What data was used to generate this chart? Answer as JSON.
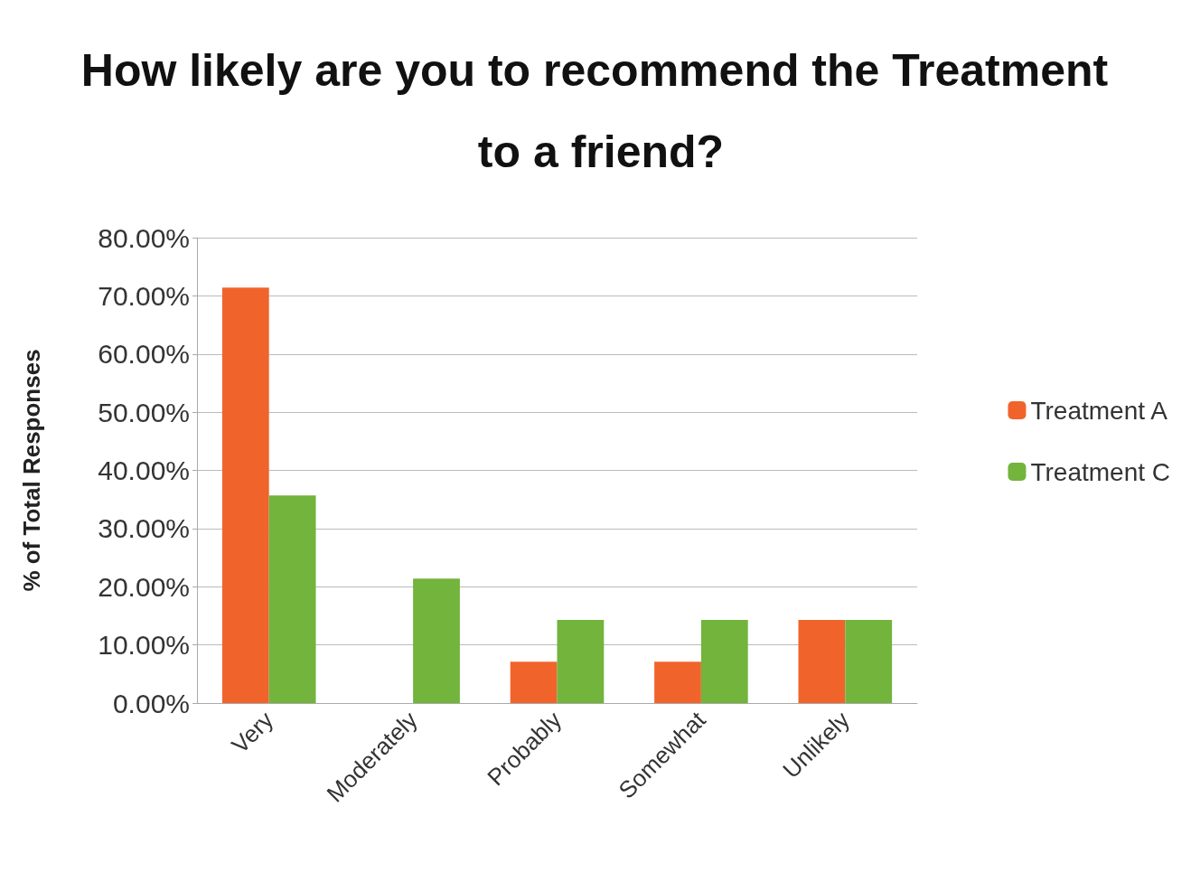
{
  "chart_data": {
    "type": "bar",
    "title": "How likely are you to recommend the Treatment to a friend?",
    "ylabel": "% of Total Responses",
    "categories": [
      "Very",
      "Moderately",
      "Probably",
      "Somewhat",
      "Unlikely"
    ],
    "series": [
      {
        "name": "Treatment A",
        "color": "#f0642c",
        "values": [
          71.4,
          0,
          7.1,
          7.1,
          14.3
        ]
      },
      {
        "name": "Treatment C",
        "color": "#72b43c",
        "values": [
          35.7,
          21.4,
          14.3,
          14.3,
          14.3
        ]
      }
    ],
    "ylim": [
      0,
      80
    ],
    "yticks": [
      {
        "value": 0,
        "label": "0.00%"
      },
      {
        "value": 10,
        "label": "10.00%"
      },
      {
        "value": 20,
        "label": "20.00%"
      },
      {
        "value": 30,
        "label": "30.00%"
      },
      {
        "value": 40,
        "label": "40.00%"
      },
      {
        "value": 50,
        "label": "50.00%"
      },
      {
        "value": 60,
        "label": "60.00%"
      },
      {
        "value": 70,
        "label": "70.00%"
      },
      {
        "value": 80,
        "label": "80.00%"
      }
    ],
    "grid": "y",
    "legend": "right"
  }
}
